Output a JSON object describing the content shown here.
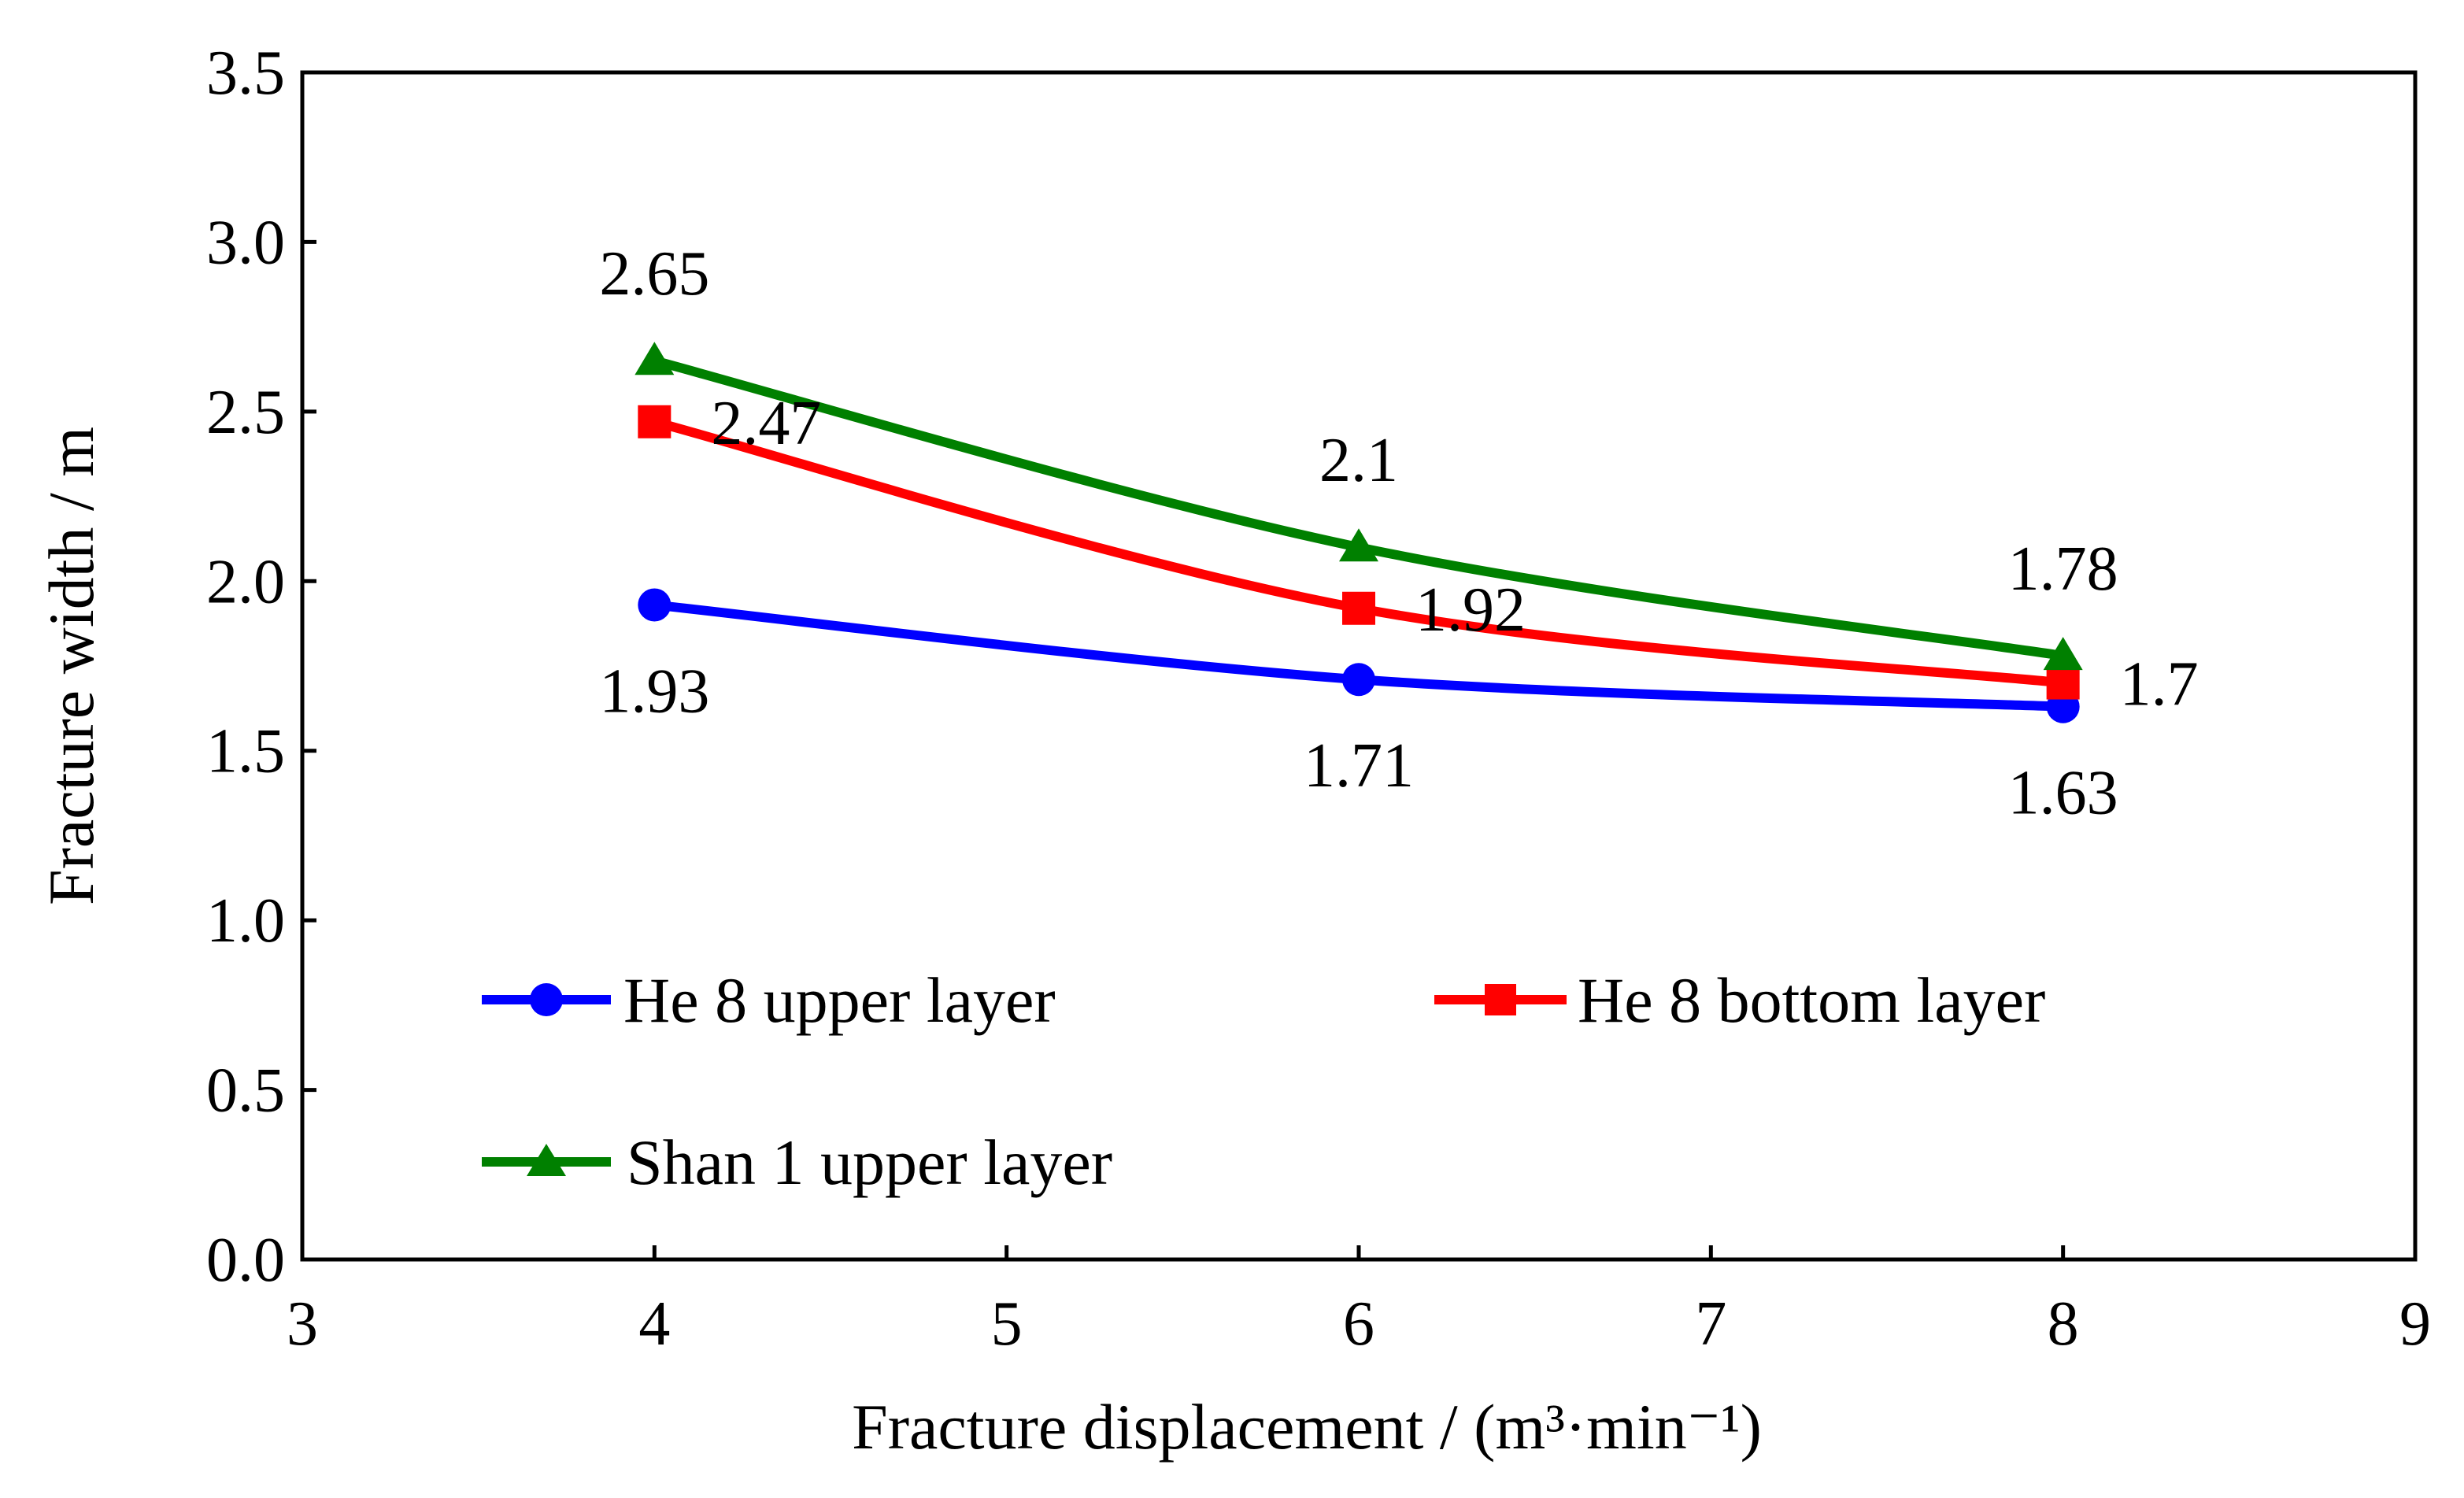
{
  "chart_data": {
    "type": "line",
    "title": "",
    "xlabel": "Fracture displacement / (m³·min⁻¹)",
    "ylabel": "Fracture width / m",
    "xlim": [
      3,
      9
    ],
    "ylim": [
      0,
      3.5
    ],
    "xticks": [
      3,
      4,
      5,
      6,
      7,
      8,
      9
    ],
    "yticks": [
      "0.0",
      "0.5",
      "1.0",
      "1.5",
      "2.0",
      "2.5",
      "3.0",
      "3.5"
    ],
    "grid": false,
    "x": [
      4,
      6,
      8
    ],
    "series": [
      {
        "name": "He 8 upper layer",
        "values": [
          1.93,
          1.71,
          1.63
        ],
        "labels": [
          "1.93",
          "1.71",
          "1.63"
        ],
        "color": "#0000ff",
        "marker": "circle",
        "label_position": "below"
      },
      {
        "name": "He 8 bottom layer",
        "values": [
          2.47,
          1.92,
          1.7
        ],
        "labels": [
          "2.47",
          "1.92",
          "1.7"
        ],
        "color": "#ff0000",
        "marker": "square",
        "label_position": "right"
      },
      {
        "name": "Shan 1 upper layer",
        "values": [
          2.65,
          2.1,
          1.78
        ],
        "labels": [
          "2.65",
          "2.1",
          "1.78"
        ],
        "color": "#008000",
        "marker": "triangle",
        "label_position": "above"
      }
    ],
    "legend": {
      "placement": "inside-bottom",
      "entries": [
        "He 8 upper layer",
        "He 8 bottom layer",
        "Shan 1 upper layer"
      ]
    }
  }
}
